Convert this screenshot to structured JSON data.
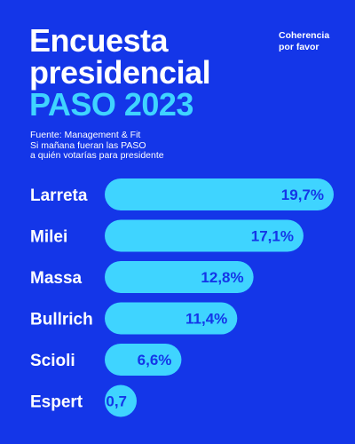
{
  "header": {
    "title_lines": [
      "Encuesta",
      "presidencial",
      "PASO 2023"
    ],
    "brand_lines": [
      "Coherencia",
      "por favor"
    ],
    "source_lines": [
      "Fuente: Management & Fit",
      "Si mañana fueran las PASO",
      "a quién votarías para presidente"
    ]
  },
  "colors": {
    "background": "#1436e8",
    "bar": "#3fd4ff",
    "accent_title": "#3fd4ff",
    "text": "#ffffff"
  },
  "chart_data": {
    "type": "bar",
    "orientation": "horizontal",
    "categories": [
      "Larreta",
      "Milei",
      "Massa",
      "Bullrich",
      "Scioli",
      "Espert"
    ],
    "values": [
      19.7,
      17.1,
      12.8,
      11.4,
      6.6,
      0.7
    ],
    "value_labels": [
      "19,7%",
      "17,1%",
      "12,8%",
      "11,4%",
      "6,6%",
      "0,7"
    ],
    "xlim": [
      0,
      19.7
    ],
    "grid": false,
    "legend": "none"
  }
}
